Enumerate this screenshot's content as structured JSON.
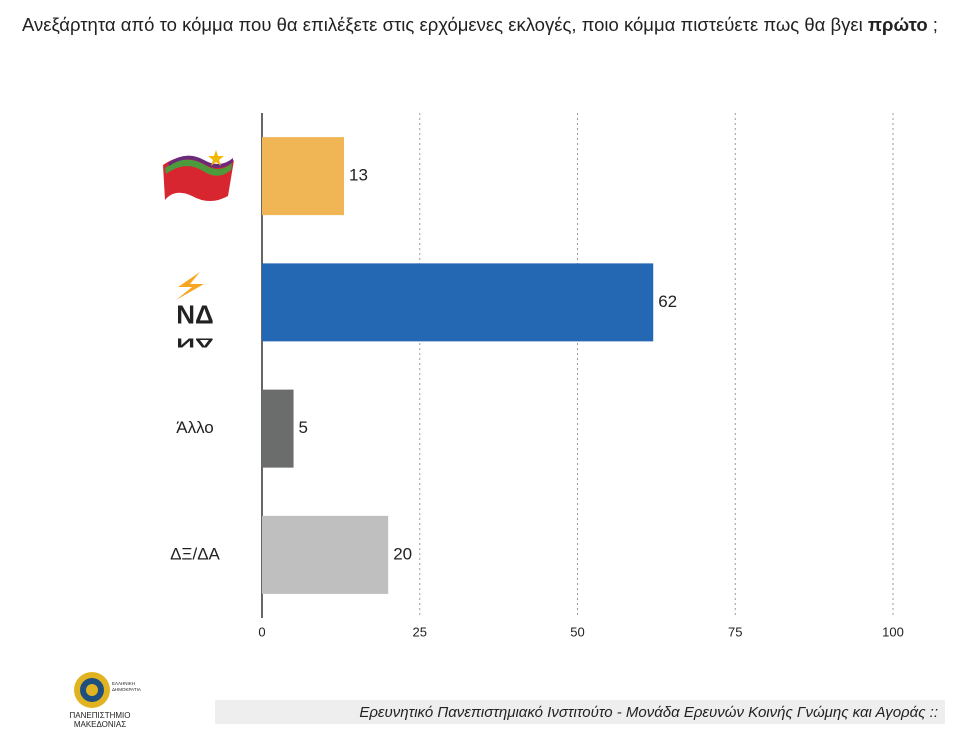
{
  "chart_data": {
    "type": "hbar",
    "title": [
      "Ανεξάρτητα από το κόμμα που θα επιλέξετε στις ερχόμενες εκλογές, ποιο κόμμα πιστεύετε πως θα βγει ",
      "πρώτο",
      " ;"
    ],
    "categories": [
      null,
      "ΝΔ",
      "Άλλο",
      "ΔΞ/ΔΑ"
    ],
    "values": [
      13,
      62,
      5,
      20
    ],
    "colors": [
      "#f0b555",
      "#2468b4",
      "#6a6d6c",
      "#bfbfbf"
    ],
    "xlim": [
      0,
      100
    ],
    "xticks": [
      0,
      25,
      50,
      75,
      100
    ],
    "grid": true
  },
  "footer": {
    "text": "Ερευνητικό Πανεπιστημιακό Ινστιτούτο - Μονάδα Ερευνών Κοινής Γνώμης και Αγοράς ::",
    "logo_lines": [
      "ΠΑΝΕΠΙΣΤΗΜΙΟ",
      "ΜΑΚΕΔΟΝΙΑΣ"
    ],
    "logo_small": [
      "ΕΛΛΗΝΙΚΗ",
      "ΔΗΜΟΚΡΑΤΙΑ"
    ]
  }
}
